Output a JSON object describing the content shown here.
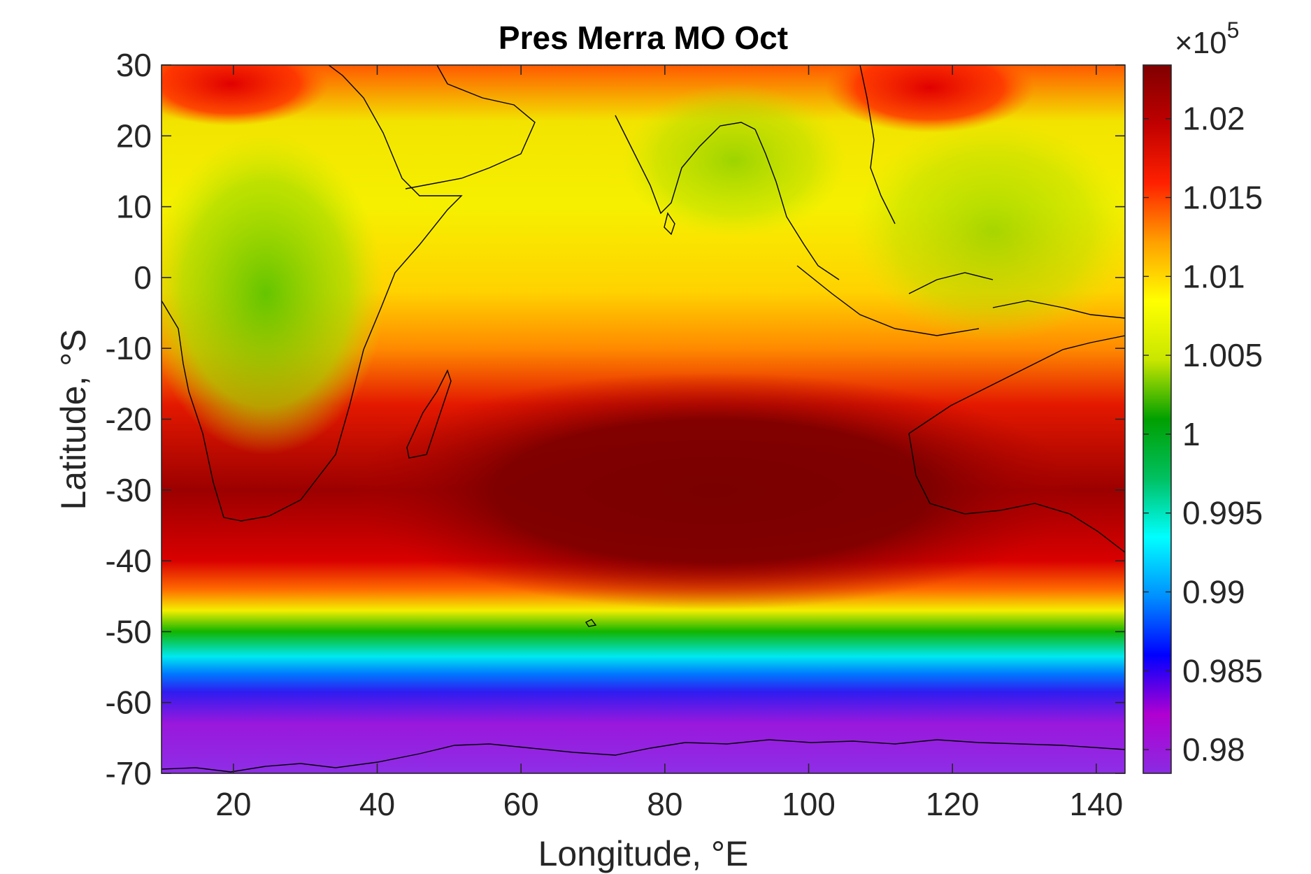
{
  "chart_data": {
    "type": "heatmap",
    "title": "Pres Merra MO Oct",
    "xlabel": "Longitude, °E",
    "ylabel": "Latitude, °S",
    "xlim": [
      10,
      144
    ],
    "ylim": [
      -70,
      30
    ],
    "xticks": [
      20,
      40,
      60,
      80,
      100,
      120,
      140
    ],
    "xtick_labels": [
      "20",
      "40",
      "60",
      "80",
      "100",
      "120",
      "140"
    ],
    "yticks": [
      30,
      20,
      10,
      0,
      -10,
      -20,
      -30,
      -40,
      -50,
      -60,
      -70
    ],
    "ytick_labels": [
      "30",
      "20",
      "10",
      "0",
      "-10",
      "-20",
      "-30",
      "-40",
      "-50",
      "-60",
      "-70"
    ],
    "colorbar": {
      "multiplier_label": "×10",
      "multiplier_exponent": "5",
      "clim": [
        0.9785,
        1.0234
      ],
      "ticks": [
        0.98,
        0.985,
        0.99,
        0.995,
        1.0,
        1.005,
        1.01,
        1.015,
        1.02
      ],
      "tick_labels": [
        "0.98",
        "0.985",
        "0.99",
        "0.995",
        "1",
        "1.005",
        "1.01",
        "1.015",
        "1.02"
      ],
      "colormap": [
        "#8a2be2",
        "#b000d0",
        "#0000ff",
        "#0090ff",
        "#00ffff",
        "#00c060",
        "#00a000",
        "#c8e600",
        "#ffff00",
        "#ffa000",
        "#ff2000",
        "#c00000",
        "#800000"
      ]
    },
    "grid": false,
    "legend": "none",
    "latitude_profile": [
      {
        "lat": 30,
        "value": 1.0115
      },
      {
        "lat": 20,
        "value": 1.0105
      },
      {
        "lat": 10,
        "value": 1.011
      },
      {
        "lat": 0,
        "value": 1.011
      },
      {
        "lat": -10,
        "value": 1.0135
      },
      {
        "lat": -20,
        "value": 1.0175
      },
      {
        "lat": -30,
        "value": 1.0215
      },
      {
        "lat": -40,
        "value": 1.0185
      },
      {
        "lat": -45,
        "value": 1.013
      },
      {
        "lat": -50,
        "value": 1.005
      },
      {
        "lat": -55,
        "value": 0.992
      },
      {
        "lat": -60,
        "value": 0.984
      },
      {
        "lat": -70,
        "value": 0.98
      }
    ],
    "features": [
      {
        "name": "high-pressure-core",
        "lon": 78,
        "lat": -31,
        "value": 1.0234
      },
      {
        "name": "indian-ocean-high-band",
        "lon": 75,
        "lat": -28,
        "value": 1.021
      }
    ]
  }
}
